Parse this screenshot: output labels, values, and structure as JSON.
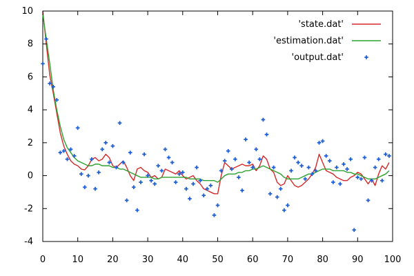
{
  "chart_data": {
    "type": "line",
    "title": "",
    "xlabel": "",
    "ylabel": "",
    "xlim": [
      0,
      100
    ],
    "ylim": [
      -4,
      10
    ],
    "xticks": [
      "0",
      "10",
      "20",
      "30",
      "40",
      "50",
      "60",
      "70",
      "80",
      "90",
      "100"
    ],
    "yticks": [
      "-4",
      "-2",
      "0",
      "2",
      "4",
      "6",
      "8",
      "10"
    ],
    "grid": false,
    "legend_position": "top-right",
    "legend": [
      {
        "label": "'state.dat'",
        "kind": "line",
        "color": "#d62728"
      },
      {
        "label": "'estimation.dat'",
        "kind": "line",
        "color": "#2ca02c"
      },
      {
        "label": "'output.dat'",
        "kind": "scatter",
        "color": "#1f5fd6"
      }
    ],
    "series": [
      {
        "name": "'state.dat'",
        "kind": "line",
        "color": "#d62728",
        "x": [
          0,
          1,
          2,
          3,
          4,
          5,
          6,
          7,
          8,
          9,
          10,
          11,
          12,
          13,
          14,
          15,
          16,
          17,
          18,
          19,
          20,
          21,
          22,
          23,
          24,
          25,
          26,
          27,
          28,
          29,
          30,
          31,
          32,
          33,
          34,
          35,
          36,
          37,
          38,
          39,
          40,
          41,
          42,
          43,
          44,
          45,
          46,
          47,
          48,
          49,
          50,
          51,
          52,
          53,
          54,
          55,
          56,
          57,
          58,
          59,
          60,
          61,
          62,
          63,
          64,
          65,
          66,
          67,
          68,
          69,
          70,
          71,
          72,
          73,
          74,
          75,
          76,
          77,
          78,
          79,
          80,
          81,
          82,
          83,
          84,
          85,
          86,
          87,
          88,
          89,
          90,
          91,
          92,
          93,
          94,
          95,
          96,
          97,
          98,
          99
        ],
        "y": [
          10,
          8.0,
          6.1,
          5.0,
          3.8,
          2.6,
          1.8,
          1.3,
          0.9,
          0.7,
          0.6,
          0.4,
          0.35,
          0.6,
          1.0,
          1.1,
          0.9,
          1.0,
          1.3,
          1.1,
          0.6,
          0.5,
          0.7,
          0.9,
          0.5,
          0.0,
          -0.3,
          0.4,
          0.5,
          0.3,
          0.2,
          -0.1,
          0.0,
          -0.2,
          -0.1,
          0.4,
          0.3,
          0.2,
          0.1,
          0.3,
          0.0,
          -0.2,
          -0.1,
          0.0,
          -0.3,
          -0.5,
          -0.8,
          -0.9,
          -1.0,
          -1.1,
          -1.1,
          0.0,
          0.8,
          0.6,
          0.4,
          0.5,
          0.6,
          0.7,
          0.6,
          0.6,
          0.7,
          0.3,
          0.6,
          1.2,
          1.0,
          0.4,
          0.2,
          -0.4,
          -0.6,
          -0.5,
          0.0,
          -0.3,
          -0.6,
          -0.7,
          -0.6,
          -0.4,
          -0.2,
          0.1,
          0.5,
          1.3,
          0.8,
          0.3,
          0.2,
          0.1,
          -0.1,
          -0.2,
          -0.3,
          -0.3,
          -0.1,
          0.0,
          0.2,
          0.1,
          -0.2,
          -0.5,
          -0.2,
          -0.6,
          0.1,
          0.6,
          0.4,
          0.8
        ]
      },
      {
        "name": "'estimation.dat'",
        "kind": "line",
        "color": "#2ca02c",
        "x": [
          0,
          1,
          2,
          3,
          4,
          5,
          6,
          7,
          8,
          9,
          10,
          11,
          12,
          13,
          14,
          15,
          16,
          17,
          18,
          19,
          20,
          21,
          22,
          23,
          24,
          25,
          26,
          27,
          28,
          29,
          30,
          31,
          32,
          33,
          34,
          35,
          36,
          37,
          38,
          39,
          40,
          41,
          42,
          43,
          44,
          45,
          46,
          47,
          48,
          49,
          50,
          51,
          52,
          53,
          54,
          55,
          56,
          57,
          58,
          59,
          60,
          61,
          62,
          63,
          64,
          65,
          66,
          67,
          68,
          69,
          70,
          71,
          72,
          73,
          74,
          75,
          76,
          77,
          78,
          79,
          80,
          81,
          82,
          83,
          84,
          85,
          86,
          87,
          88,
          89,
          90,
          91,
          92,
          93,
          94,
          95,
          96,
          97,
          98,
          99
        ],
        "y": [
          9.8,
          8.3,
          6.8,
          5.2,
          4.0,
          3.0,
          2.2,
          1.7,
          1.4,
          1.1,
          0.9,
          0.8,
          0.7,
          0.6,
          0.6,
          0.7,
          0.7,
          0.6,
          0.6,
          0.6,
          0.5,
          0.5,
          0.4,
          0.4,
          0.3,
          0.2,
          0.1,
          0.0,
          -0.1,
          -0.1,
          -0.1,
          -0.1,
          -0.2,
          -0.2,
          -0.1,
          -0.1,
          -0.1,
          -0.1,
          -0.1,
          -0.1,
          -0.1,
          -0.1,
          -0.2,
          -0.2,
          -0.2,
          -0.2,
          -0.3,
          -0.3,
          -0.3,
          -0.3,
          -0.4,
          -0.2,
          0.0,
          0.1,
          0.1,
          0.1,
          0.2,
          0.2,
          0.3,
          0.3,
          0.4,
          0.4,
          0.5,
          0.6,
          0.5,
          0.4,
          0.3,
          0.2,
          0.1,
          -0.1,
          -0.2,
          -0.2,
          -0.2,
          -0.2,
          -0.1,
          0.0,
          0.1,
          0.1,
          0.2,
          0.3,
          0.4,
          0.4,
          0.4,
          0.3,
          0.3,
          0.3,
          0.3,
          0.2,
          0.2,
          0.1,
          0.1,
          0.0,
          -0.1,
          -0.2,
          -0.2,
          -0.2,
          -0.1,
          0.0,
          0.1,
          0.3
        ]
      },
      {
        "name": "'output.dat'",
        "kind": "scatter",
        "color": "#1f5fd6",
        "x": [
          0,
          1,
          2,
          3,
          4,
          5,
          6,
          7,
          8,
          9,
          10,
          11,
          12,
          13,
          14,
          15,
          16,
          17,
          18,
          19,
          20,
          21,
          22,
          23,
          24,
          25,
          26,
          27,
          28,
          29,
          30,
          31,
          32,
          33,
          34,
          35,
          36,
          37,
          38,
          39,
          40,
          41,
          42,
          43,
          44,
          45,
          46,
          47,
          48,
          49,
          50,
          51,
          52,
          53,
          54,
          55,
          56,
          57,
          58,
          59,
          60,
          61,
          62,
          63,
          64,
          65,
          66,
          67,
          68,
          69,
          70,
          71,
          72,
          73,
          74,
          75,
          76,
          77,
          78,
          79,
          80,
          81,
          82,
          83,
          84,
          85,
          86,
          87,
          88,
          89,
          90,
          91,
          92,
          93,
          94,
          95,
          96,
          97,
          98,
          99
        ],
        "y": [
          6.8,
          8.3,
          5.6,
          5.4,
          4.6,
          1.4,
          1.5,
          1.0,
          1.6,
          1.2,
          2.9,
          0.1,
          -0.7,
          0.0,
          1.0,
          -0.8,
          0.2,
          1.6,
          2.0,
          0.8,
          1.8,
          0.5,
          3.2,
          0.8,
          -1.5,
          1.4,
          -0.7,
          -2.1,
          -0.4,
          1.3,
          0.0,
          -0.3,
          -0.5,
          0.6,
          0.3,
          1.6,
          1.1,
          0.8,
          -0.4,
          0.1,
          0.2,
          -0.8,
          -1.4,
          -0.5,
          0.5,
          -0.3,
          -1.2,
          -0.8,
          -0.6,
          -2.4,
          -1.8,
          0.3,
          0.9,
          1.5,
          0.4,
          1.0,
          -0.1,
          -0.9,
          2.2,
          0.8,
          0.5,
          1.6,
          1.0,
          3.4,
          2.5,
          -1.1,
          0.5,
          -1.3,
          -0.8,
          -2.1,
          -1.8,
          0.3,
          1.1,
          0.8,
          0.6,
          -0.2,
          0.5,
          0.1,
          0.3,
          2.0,
          2.1,
          1.2,
          0.9,
          -0.4,
          0.5,
          -0.5,
          0.7,
          0.4,
          1.0,
          -3.3,
          -0.1,
          -0.2,
          1.1,
          -1.5,
          -0.3,
          0.5,
          1.0,
          -0.3,
          1.3,
          1.2
        ]
      }
    ]
  }
}
